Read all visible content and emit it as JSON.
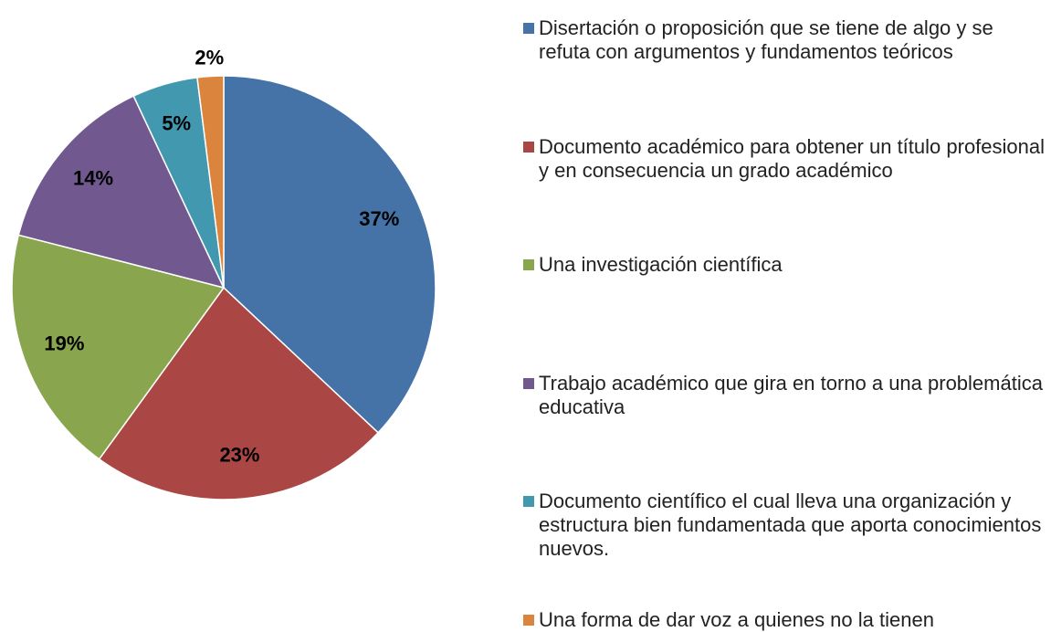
{
  "chart_data": {
    "type": "pie",
    "categories": [
      "Disertación o proposición que se tiene de algo y se refuta con argumentos y fundamentos teóricos",
      "Documento académico para obtener un título profesional y en consecuencia un grado académico",
      "Una investigación científica",
      "Trabajo académico que gira en torno a una problemática educativa",
      "Documento científico el cual lleva una organización y estructura bien fundamentada que aporta conocimientos nuevos.",
      "Una forma de dar voz a quienes no la tienen"
    ],
    "values": [
      37,
      23,
      19,
      14,
      5,
      2
    ],
    "value_labels": [
      "37%",
      "23%",
      "19%",
      "14%",
      "5%",
      "2%"
    ],
    "colors": [
      "#4572a7",
      "#aa4643",
      "#89a54e",
      "#71588f",
      "#4198af",
      "#db843d"
    ],
    "legend": "right"
  }
}
